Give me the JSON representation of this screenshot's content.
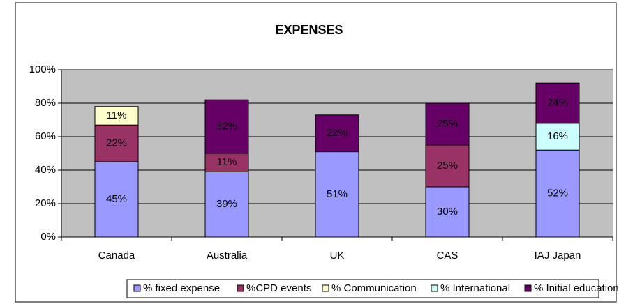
{
  "chart_data": {
    "type": "stacked_bar",
    "title": "EXPENSES",
    "categories": [
      "Canada",
      "Australia",
      "UK",
      "CAS",
      "IAJ Japan"
    ],
    "series": [
      {
        "name": "% fixed expense",
        "color": "#9999ff",
        "values": [
          45,
          39,
          51,
          30,
          52
        ],
        "value_labels": [
          "45%",
          "39%",
          "51%",
          "30%",
          "52%"
        ]
      },
      {
        "name": "%CPD events",
        "color": "#993366",
        "values": [
          22,
          11,
          null,
          25,
          null
        ],
        "value_labels": [
          "22%",
          "11%",
          null,
          "25%",
          null
        ]
      },
      {
        "name": "% Communication",
        "color": "#ffffcc",
        "values": [
          11,
          null,
          null,
          null,
          null
        ],
        "value_labels": [
          "11%",
          null,
          null,
          null,
          null
        ]
      },
      {
        "name": "% International",
        "color": "#ccffff",
        "values": [
          null,
          null,
          null,
          null,
          16
        ],
        "value_labels": [
          null,
          null,
          null,
          null,
          "16%"
        ]
      },
      {
        "name": "% Initial education",
        "color": "#660066",
        "values": [
          null,
          32,
          22,
          25,
          24
        ],
        "value_labels": [
          null,
          "32%",
          "22%",
          "25%",
          "24%"
        ]
      }
    ],
    "ylim": [
      0,
      100
    ],
    "yticks": [
      {
        "value": 0,
        "label": "0%"
      },
      {
        "value": 20,
        "label": "20%"
      },
      {
        "value": 40,
        "label": "40%"
      },
      {
        "value": 60,
        "label": "60%"
      },
      {
        "value": 80,
        "label": "80%"
      },
      {
        "value": 100,
        "label": "100%"
      }
    ],
    "grid": true,
    "legend": "bottom",
    "plot_background": "#c0c0c0"
  }
}
